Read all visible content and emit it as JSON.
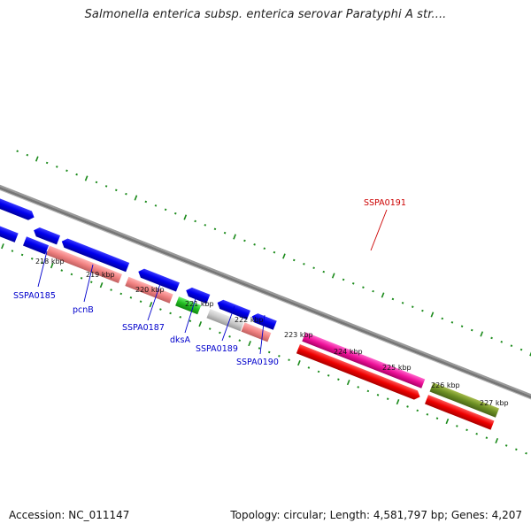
{
  "title": "Salmonella enterica subsp. enterica serovar Paratyphi A str....",
  "accession_text": "Accession: NC_011147",
  "summary_text": "Topology: circular; Length: 4,581,797 bp; Genes: 4,207",
  "colors": {
    "backbone": "#8a8a8a",
    "ticks": "#1a8a1a",
    "label_blue": "#0000cc",
    "label_red": "#cc0000"
  },
  "ticks": [
    "218 kbp",
    "219 kbp",
    "220 kbp",
    "221 kbp",
    "222 kbp",
    "223 kbp",
    "224 kbp",
    "225 kbp",
    "226 kbp",
    "227 kbp"
  ],
  "gene_labels": [
    {
      "name": "label-sspa0185",
      "text": "SSPA0185",
      "color": "#0000cc"
    },
    {
      "name": "label-pcnb",
      "text": "pcnB",
      "color": "#0000cc"
    },
    {
      "name": "label-sspa0187",
      "text": "SSPA0187",
      "color": "#0000cc"
    },
    {
      "name": "label-dksa",
      "text": "dksA",
      "color": "#0000cc"
    },
    {
      "name": "label-sspa0189",
      "text": "SSPA0189",
      "color": "#0000cc"
    },
    {
      "name": "label-sspa0190",
      "text": "SSPA0190",
      "color": "#0000cc"
    },
    {
      "name": "label-sspa0191",
      "text": "SSPA0191",
      "color": "#cc0000"
    }
  ]
}
